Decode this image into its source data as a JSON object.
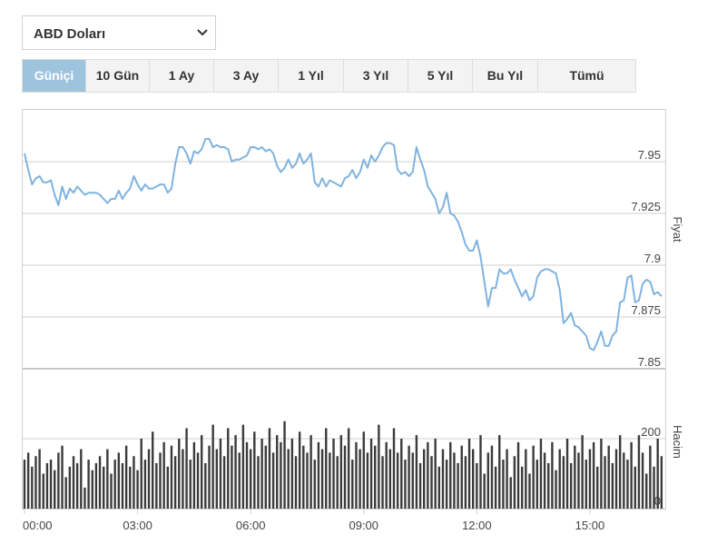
{
  "dropdown": {
    "selected": "ABD Doları"
  },
  "tabs": [
    "Güniçi",
    "10 Gün",
    "1 Ay",
    "3 Ay",
    "1 Yıl",
    "3 Yıl",
    "5 Yıl",
    "Bu Yıl",
    "Tümü"
  ],
  "chart_data": [
    {
      "type": "line",
      "ylabel": "Fiyat",
      "color": "#7fb3df",
      "grid": true,
      "xlim": [
        0,
        1020
      ],
      "ylim": [
        7.85,
        7.975
      ],
      "yticks": [
        7.85,
        7.875,
        7.9,
        7.925,
        7.95
      ],
      "x": [
        0,
        6,
        12,
        18,
        24,
        30,
        36,
        42,
        48,
        54,
        60,
        66,
        72,
        78,
        84,
        90,
        96,
        102,
        108,
        114,
        120,
        126,
        132,
        138,
        144,
        150,
        156,
        162,
        168,
        174,
        180,
        186,
        192,
        198,
        204,
        210,
        216,
        222,
        228,
        234,
        240,
        246,
        252,
        258,
        264,
        270,
        276,
        282,
        288,
        294,
        300,
        306,
        312,
        318,
        324,
        330,
        336,
        342,
        348,
        354,
        360,
        366,
        372,
        378,
        384,
        390,
        396,
        402,
        408,
        414,
        420,
        426,
        432,
        438,
        444,
        450,
        456,
        462,
        468,
        474,
        480,
        486,
        492,
        498,
        504,
        510,
        516,
        522,
        528,
        534,
        540,
        546,
        552,
        558,
        564,
        570,
        576,
        582,
        588,
        594,
        600,
        606,
        612,
        618,
        624,
        630,
        636,
        642,
        648,
        654,
        660,
        666,
        672,
        678,
        684,
        690,
        696,
        702,
        708,
        714,
        720,
        726,
        732,
        738,
        744,
        750,
        756,
        762,
        768,
        774,
        780,
        786,
        792,
        798,
        804,
        810,
        816,
        822,
        828,
        834,
        840,
        846,
        852,
        858,
        864,
        870,
        876,
        882,
        888,
        894,
        900,
        906,
        912,
        918,
        924,
        930,
        936,
        942,
        948,
        954,
        960,
        966,
        972,
        978,
        984,
        990,
        996,
        1002,
        1008,
        1014
      ],
      "values": [
        7.954,
        7.946,
        7.939,
        7.942,
        7.943,
        7.94,
        7.94,
        7.941,
        7.934,
        7.929,
        7.938,
        7.932,
        7.937,
        7.935,
        7.938,
        7.936,
        7.934,
        7.935,
        7.935,
        7.935,
        7.934,
        7.932,
        7.93,
        7.932,
        7.932,
        7.936,
        7.932,
        7.935,
        7.937,
        7.943,
        7.939,
        7.936,
        7.939,
        7.937,
        7.937,
        7.938,
        7.939,
        7.939,
        7.935,
        7.937,
        7.949,
        7.957,
        7.957,
        7.954,
        7.949,
        7.955,
        7.954,
        7.956,
        7.961,
        7.961,
        7.957,
        7.958,
        7.957,
        7.957,
        7.956,
        7.95,
        7.951,
        7.951,
        7.952,
        7.953,
        7.957,
        7.957,
        7.956,
        7.957,
        7.955,
        7.956,
        7.954,
        7.948,
        7.945,
        7.947,
        7.951,
        7.947,
        7.949,
        7.954,
        7.949,
        7.951,
        7.954,
        7.94,
        7.938,
        7.942,
        7.938,
        7.941,
        7.94,
        7.939,
        7.938,
        7.942,
        7.943,
        7.946,
        7.942,
        7.945,
        7.951,
        7.947,
        7.953,
        7.95,
        7.953,
        7.957,
        7.959,
        7.959,
        7.958,
        7.946,
        7.944,
        7.945,
        7.943,
        7.945,
        7.957,
        7.951,
        7.946,
        7.938,
        7.935,
        7.932,
        7.925,
        7.928,
        7.935,
        7.925,
        7.924,
        7.921,
        7.916,
        7.91,
        7.907,
        7.907,
        7.912,
        7.904,
        7.892,
        7.88,
        7.889,
        7.889,
        7.898,
        7.896,
        7.896,
        7.898,
        7.893,
        7.889,
        7.885,
        7.888,
        7.883,
        7.885,
        7.894,
        7.897,
        7.898,
        7.898,
        7.897,
        7.896,
        7.888,
        7.872,
        7.874,
        7.877,
        7.871,
        7.87,
        7.868,
        7.866,
        7.86,
        7.859,
        7.863,
        7.868,
        7.861,
        7.861,
        7.866,
        7.868,
        7.882,
        7.883,
        7.894,
        7.895,
        7.882,
        7.883,
        7.891,
        7.893,
        7.892,
        7.886,
        7.887,
        7.885
      ]
    },
    {
      "type": "bar",
      "ylabel": "Hacim",
      "color": "#3b3b3b",
      "grid": true,
      "xlim": [
        0,
        1020
      ],
      "ylim": [
        0,
        400
      ],
      "yticks": [
        0,
        200
      ],
      "xticks": [
        {
          "value": 0,
          "label": "00:00"
        },
        {
          "value": 180,
          "label": "03:00"
        },
        {
          "value": 360,
          "label": "06:00"
        },
        {
          "value": 540,
          "label": "09:00"
        },
        {
          "value": 720,
          "label": "12:00"
        },
        {
          "value": 900,
          "label": "15:00"
        }
      ],
      "x": [
        0,
        6,
        12,
        18,
        24,
        30,
        36,
        42,
        48,
        54,
        60,
        66,
        72,
        78,
        84,
        90,
        96,
        102,
        108,
        114,
        120,
        126,
        132,
        138,
        144,
        150,
        156,
        162,
        168,
        174,
        180,
        186,
        192,
        198,
        204,
        210,
        216,
        222,
        228,
        234,
        240,
        246,
        252,
        258,
        264,
        270,
        276,
        282,
        288,
        294,
        300,
        306,
        312,
        318,
        324,
        330,
        336,
        342,
        348,
        354,
        360,
        366,
        372,
        378,
        384,
        390,
        396,
        402,
        408,
        414,
        420,
        426,
        432,
        438,
        444,
        450,
        456,
        462,
        468,
        474,
        480,
        486,
        492,
        498,
        504,
        510,
        516,
        522,
        528,
        534,
        540,
        546,
        552,
        558,
        564,
        570,
        576,
        582,
        588,
        594,
        600,
        606,
        612,
        618,
        624,
        630,
        636,
        642,
        648,
        654,
        660,
        666,
        672,
        678,
        684,
        690,
        696,
        702,
        708,
        714,
        720,
        726,
        732,
        738,
        744,
        750,
        756,
        762,
        768,
        774,
        780,
        786,
        792,
        798,
        804,
        810,
        816,
        822,
        828,
        834,
        840,
        846,
        852,
        858,
        864,
        870,
        876,
        882,
        888,
        894,
        900,
        906,
        912,
        918,
        924,
        930,
        936,
        942,
        948,
        954,
        960,
        966,
        972,
        978,
        984,
        990,
        996,
        1002,
        1008,
        1014
      ],
      "values": [
        140,
        160,
        120,
        150,
        170,
        100,
        130,
        140,
        110,
        160,
        180,
        90,
        120,
        150,
        130,
        170,
        60,
        140,
        110,
        130,
        150,
        120,
        170,
        100,
        140,
        160,
        130,
        180,
        120,
        150,
        110,
        200,
        140,
        170,
        220,
        130,
        160,
        190,
        120,
        180,
        150,
        200,
        170,
        230,
        140,
        190,
        160,
        210,
        130,
        180,
        240,
        170,
        200,
        150,
        230,
        180,
        210,
        160,
        240,
        190,
        170,
        220,
        150,
        200,
        180,
        230,
        160,
        210,
        190,
        250,
        170,
        200,
        150,
        220,
        180,
        160,
        210,
        140,
        190,
        170,
        230,
        160,
        200,
        150,
        210,
        180,
        230,
        140,
        190,
        170,
        220,
        160,
        200,
        180,
        240,
        150,
        190,
        170,
        230,
        160,
        200,
        140,
        180,
        160,
        210,
        130,
        170,
        190,
        150,
        200,
        120,
        170,
        140,
        190,
        160,
        130,
        180,
        150,
        200,
        170,
        130,
        210,
        100,
        160,
        180,
        120,
        210,
        140,
        170,
        90,
        150,
        190,
        120,
        170,
        100,
        180,
        140,
        200,
        160,
        130,
        190,
        110,
        170,
        150,
        200,
        130,
        180,
        160,
        210,
        140,
        170,
        190,
        120,
        200,
        150,
        180,
        130,
        170,
        210,
        160,
        140,
        190,
        120,
        210,
        160,
        100,
        180,
        120,
        200,
        150
      ]
    }
  ]
}
